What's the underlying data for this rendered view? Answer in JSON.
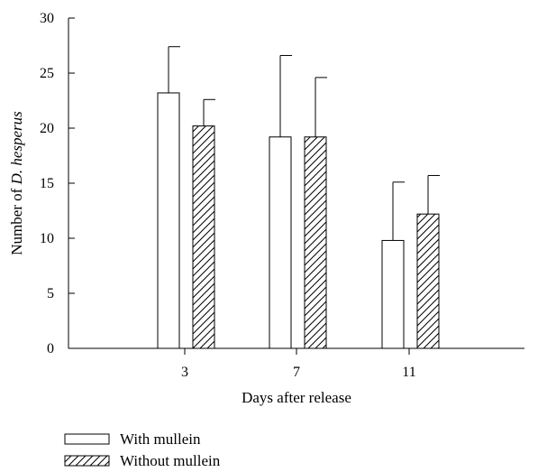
{
  "chart_data": {
    "type": "bar",
    "categories": [
      "3",
      "7",
      "11"
    ],
    "series": [
      {
        "name": "With mullein",
        "values": [
          23.2,
          19.2,
          9.8
        ],
        "errors": [
          4.2,
          7.4,
          5.3
        ],
        "fill": "#ffffff",
        "pattern": "none"
      },
      {
        "name": "Without mullein",
        "values": [
          20.2,
          19.2,
          12.2
        ],
        "errors": [
          2.4,
          5.4,
          3.5
        ],
        "fill": "#ffffff",
        "pattern": "diagonal-hatch"
      }
    ],
    "title": "",
    "xlabel": "Days after release",
    "ylabel_prefix": "Number of ",
    "ylabel_italic": "D. hesperus",
    "ylim": [
      0,
      30
    ],
    "yticks": [
      0,
      5,
      10,
      15,
      20,
      25,
      30
    ],
    "grid": false,
    "legend_position": "bottom-left"
  }
}
